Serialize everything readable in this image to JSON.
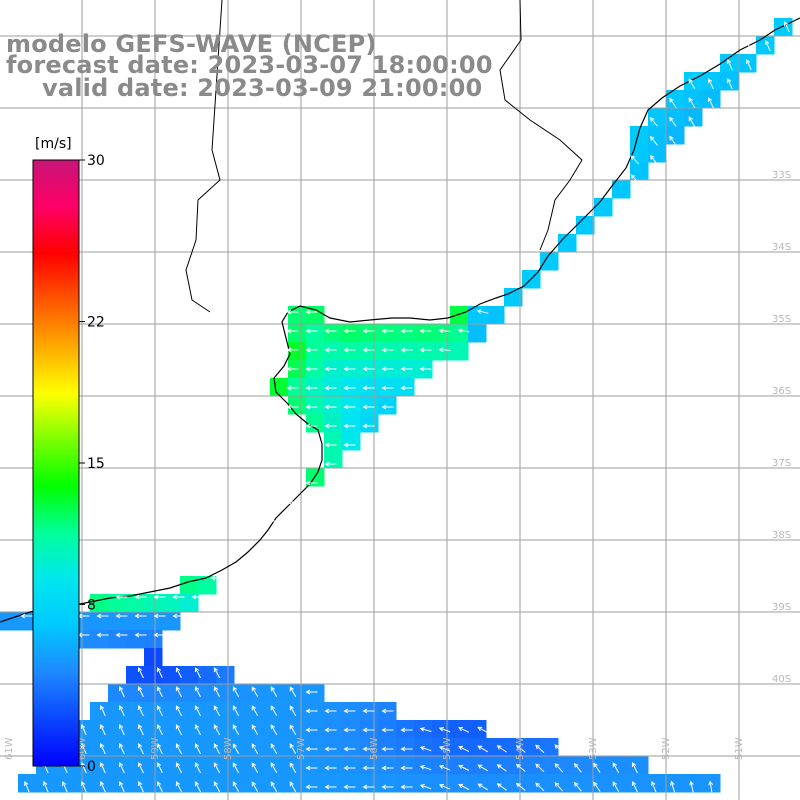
{
  "title": {
    "model": "modelo GEFS-WAVE (NCEP)",
    "forecast_date": "forecast date: 2023-03-07 18:00:00",
    "valid_date": "valid date: 2023-03-09 21:00:00"
  },
  "colorbar": {
    "unit": "[m/s]",
    "ticks": [
      {
        "value": 30,
        "label": "30"
      },
      {
        "value": 22,
        "label": "22"
      },
      {
        "value": 15,
        "label": "15"
      },
      {
        "value": 8,
        "label": "8"
      },
      {
        "value": 0,
        "label": "0"
      }
    ],
    "min": 0,
    "max": 30,
    "colors": [
      "#0000ff",
      "#0a46ff",
      "#1e88ff",
      "#00c8ff",
      "#00e6ee",
      "#00ff9a",
      "#00ff00",
      "#7cff00",
      "#ffff00",
      "#ffaa00",
      "#ff5500",
      "#ff0000",
      "#ff0066",
      "#c81478"
    ]
  },
  "longitude_labels": [
    "61W",
    "60W",
    "59W",
    "58W",
    "57W",
    "56W",
    "55W",
    "54W",
    "53W",
    "52W",
    "51W"
  ],
  "latitude_labels": [
    "33S",
    "34S",
    "35S",
    "36S",
    "37S",
    "38S",
    "39S",
    "40S"
  ],
  "colors": {
    "background": "#ffffff",
    "grid": "#9e9e9e",
    "coast": "#000000",
    "arrows": "#ffffff",
    "title": "#8a8a8a",
    "labels": "#b8b8b8"
  }
}
